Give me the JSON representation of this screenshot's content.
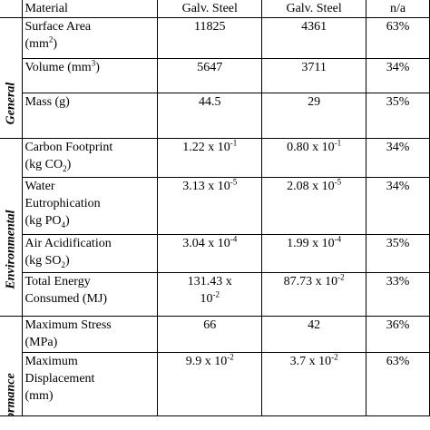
{
  "header": {
    "c1": "Material",
    "c2": "Galv. Steel",
    "c3": "Galv. Steel",
    "c4": "n/a"
  },
  "categories": {
    "general": "General",
    "environmental": "Environmental",
    "performance": "Performance"
  },
  "rows": {
    "surface_area": {
      "l1": "Surface Area",
      "l2": "(mm",
      "l2sup": "2",
      "l2end": ")",
      "v1": "11825",
      "v2": "4361",
      "v3": "63%"
    },
    "volume": {
      "l1": "Volume (mm",
      "l1sup": "3",
      "l1end": ")",
      "v1": "5647",
      "v2": "3711",
      "v3": "34%"
    },
    "mass": {
      "l1": "Mass (g)",
      "v1": "44.5",
      "v2": "29",
      "v3": "35%"
    },
    "carbon": {
      "l1": "Carbon Footprint",
      "l2": "(kg CO",
      "l2sub": "2",
      "l2end": ")",
      "v1": "1.22 x 10",
      "v1sup": "-1",
      "v2": "0.80 x 10",
      "v2sup": "-1",
      "v3": "34%"
    },
    "water": {
      "l1": "Water",
      "l2": "Eutrophication",
      "l3": "(kg PO",
      "l3sub": "4",
      "l3end": ")",
      "v1": "3.13 x 10",
      "v1sup": "-5",
      "v2": "2.08 x 10",
      "v2sup": "-5",
      "v3": "34%"
    },
    "air": {
      "l1": "Air Acidification",
      "l2": "(kg SO",
      "l2sub": "2",
      "l2end": ")",
      "v1": "3.04 x 10",
      "v1sup": "-4",
      "v2": "1.99 x 10",
      "v2sup": "-4",
      "v3": "35%"
    },
    "energy": {
      "l1": "Total Energy",
      "l2": "Consumed (MJ)",
      "v1a": "131.43 x",
      "v1b": "10",
      "v1bsup": "-2",
      "v2": "87.73 x 10",
      "v2sup": "-2",
      "v3": "33%"
    },
    "stress": {
      "l1": "Maximum Stress",
      "l2": "(MPa)",
      "v1": "66",
      "v2": "42",
      "v3": "36%"
    },
    "displacement": {
      "l1": "Maximum",
      "l2": "Displacement",
      "l3": "(mm)",
      "v1": "9.9 x 10",
      "v1sup": "-2",
      "v2": "3.7 x 10",
      "v2sup": "-2",
      "v3": "63%"
    }
  }
}
